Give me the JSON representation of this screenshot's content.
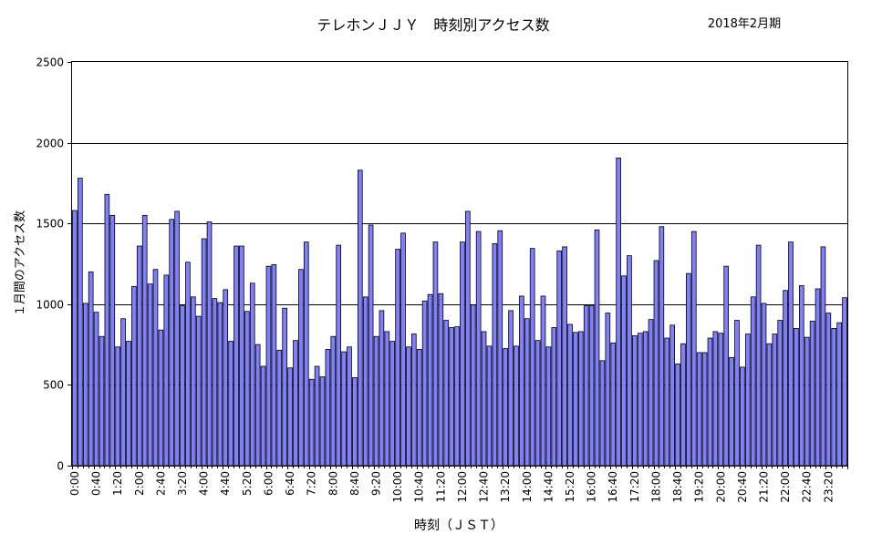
{
  "chart_data": {
    "type": "bar",
    "title": "テレホンＪＪＹ　時刻別アクセス数",
    "period": "2018年2月期",
    "xlabel": "時刻（ＪＳＴ）",
    "ylabel": "１月間のアクセス数",
    "ylim": [
      0,
      2500
    ],
    "yticks": [
      "0",
      "500",
      "1000",
      "1500",
      "2000",
      "2500"
    ],
    "grid": true,
    "bar_color": "#8080ff",
    "x_tick_labels": [
      "0:00",
      "0:40",
      "1:20",
      "2:00",
      "2:40",
      "3:20",
      "4:00",
      "4:40",
      "5:20",
      "6:00",
      "6:40",
      "7:20",
      "8:00",
      "8:40",
      "9:20",
      "10:00",
      "10:40",
      "11:20",
      "12:00",
      "12:40",
      "13:20",
      "14:00",
      "14:40",
      "15:20",
      "16:00",
      "16:40",
      "17:20",
      "18:00",
      "18:40",
      "19:20",
      "20:00",
      "20:40",
      "21:20",
      "22:00",
      "22:40",
      "23:20"
    ],
    "x_tick_interval_bars": 4,
    "bar_interval_minutes": 10,
    "values": [
      1580,
      1780,
      1005,
      1200,
      950,
      800,
      1680,
      1550,
      735,
      910,
      770,
      1110,
      1360,
      1550,
      1125,
      1215,
      840,
      1180,
      1525,
      1575,
      990,
      1260,
      1045,
      925,
      1405,
      1510,
      1035,
      1010,
      1090,
      770,
      1360,
      1360,
      955,
      1130,
      750,
      615,
      1235,
      1245,
      715,
      975,
      605,
      775,
      1215,
      1385,
      535,
      615,
      550,
      720,
      800,
      1365,
      705,
      735,
      545,
      1830,
      1045,
      1490,
      800,
      960,
      830,
      770,
      1340,
      1440,
      735,
      815,
      720,
      1020,
      1060,
      1385,
      1065,
      900,
      855,
      860,
      1385,
      1575,
      995,
      1450,
      830,
      740,
      1375,
      1455,
      725,
      960,
      740,
      1050,
      910,
      1345,
      775,
      1050,
      735,
      855,
      1330,
      1355,
      875,
      825,
      830,
      990,
      990,
      1460,
      650,
      945,
      760,
      1905,
      1175,
      1300,
      805,
      820,
      830,
      905,
      1270,
      1480,
      790,
      870,
      630,
      755,
      1190,
      1450,
      700,
      700,
      790,
      830,
      820,
      1235,
      670,
      900,
      610,
      815,
      1045,
      1365,
      1005,
      755,
      815,
      900,
      1085,
      1385,
      850,
      1115,
      795,
      895,
      1095,
      1355,
      945,
      850,
      885,
      1040
    ]
  }
}
